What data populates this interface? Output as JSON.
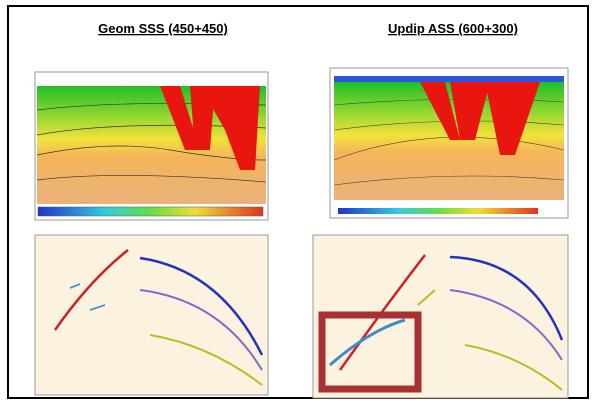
{
  "panels": [
    {
      "title": "Geom SSS (450+450)"
    },
    {
      "title": "Updip ASS (600+300)"
    }
  ]
}
